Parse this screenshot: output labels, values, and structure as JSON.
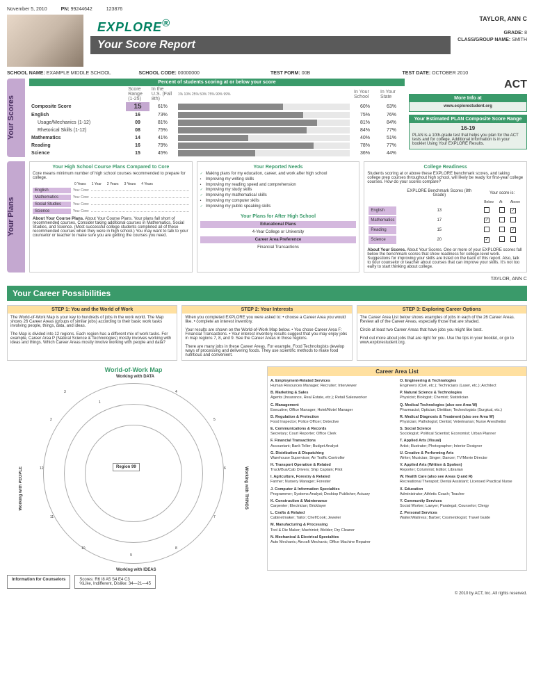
{
  "top": {
    "date": "November 5, 2010",
    "pn_label": "PN:",
    "pn": "99244642",
    "id": "123876"
  },
  "header": {
    "logo": "EXPLORE",
    "reg": "®",
    "title": "Your Score Report"
  },
  "student": {
    "name": "TAYLOR, ANN C",
    "grade_label": "GRADE:",
    "grade": "8",
    "class_label": "CLASS/GROUP NAME:",
    "class": "SMITH"
  },
  "info": {
    "school_name_label": "SCHOOL NAME:",
    "school_name": "EXAMPLE MIDDLE SCHOOL",
    "school_code_label": "SCHOOL CODE:",
    "school_code": "00000000",
    "test_form_label": "TEST FORM:",
    "test_form": "00B",
    "test_date_label": "TEST DATE:",
    "test_date": "OCTOBER 2010"
  },
  "scores": {
    "tab": "Your Scores",
    "header": "Percent of students scoring at or below your score",
    "range_label": "Score Range (1-25)",
    "us_label": "In the U.S. (Fall 8th)",
    "school_label": "In Your School",
    "state_label": "In Your State",
    "ticks": [
      "1%",
      "10%",
      "25%",
      "50%",
      "75%",
      "90%",
      "99%"
    ],
    "rows": [
      {
        "label": "Composite Score",
        "bold": true,
        "score": "15",
        "big": true,
        "us": 61,
        "school": "60%",
        "state": "63%"
      },
      {
        "label": "English",
        "bold": true,
        "score": "16",
        "us": 73,
        "school": "75%",
        "state": "76%"
      },
      {
        "label": "Usage/Mechanics (1-12)",
        "bold": false,
        "score": "09",
        "us": 81,
        "school": "81%",
        "state": "84%",
        "indent": true
      },
      {
        "label": "Rhetorical Skills (1-12)",
        "bold": false,
        "score": "08",
        "us": 75,
        "school": "84%",
        "state": "77%",
        "indent": true
      },
      {
        "label": "Mathematics",
        "bold": true,
        "score": "14",
        "us": 41,
        "school": "40%",
        "state": "51%"
      },
      {
        "label": "Reading",
        "bold": true,
        "score": "16",
        "us": 79,
        "school": "78%",
        "state": "77%"
      },
      {
        "label": "Science",
        "bold": true,
        "score": "15",
        "us": 45,
        "school": "36%",
        "state": "44%"
      }
    ],
    "act_logo": "ACT",
    "more_info": {
      "hd": "More Info at",
      "url": "www.explorestudent.org"
    },
    "plan": {
      "hd": "Your Estimated PLAN Composite Score Range",
      "range": "16-19",
      "text": "PLAN is a 10th-grade test that helps you plan for the ACT tests and for college. Additional information is in your booklet Using Your EXPLORE Results."
    }
  },
  "plans": {
    "tab": "Your Plans",
    "courses": {
      "hd": "Your High School Course Plans Compared to Core",
      "intro": "Core means minimum number of high school courses recommended to prepare for college.",
      "years_hdr": [
        "0 Years",
        "1 Year",
        "2 Years",
        "3 Years",
        "4 Years"
      ],
      "subjects": [
        "English",
        "Mathematics",
        "Social Studies",
        "Science"
      ],
      "you_core": "You: Core:",
      "about": "About Your Course Plans. Your plans fall short of recommended courses. Consider taking additional courses in Mathematics, Social Studies, and Science. (Most successful college students completed all of these recommended courses when they were in high school.) You may want to talk to your counselor or teacher to make sure you are getting the courses you need."
    },
    "needs": {
      "hd": "Your Reported Needs",
      "items": [
        {
          "t": "Making plans for my education, career, and work after high school",
          "c": true
        },
        {
          "t": "Improving my writing skills",
          "c": false
        },
        {
          "t": "Improving my reading speed and comprehension",
          "c": false
        },
        {
          "t": "Improving my study skills",
          "c": true
        },
        {
          "t": "Improving my mathematical skills",
          "c": true
        },
        {
          "t": "Improving my computer skills",
          "c": false
        },
        {
          "t": "Improving my public speaking skills",
          "c": true
        }
      ],
      "after_hd": "Your Plans for After High School",
      "edu_hd": "Educational Plans",
      "edu": "4-Year College or University",
      "pref_hd": "Career Area Preference",
      "pref": "Financial Transactions"
    },
    "readiness": {
      "hd": "College Readiness",
      "intro": "Students scoring at or above these EXPLORE benchmark scores, and taking college prep courses throughout high school, will likely be ready for first-year college courses. How do your scores compare?",
      "bench_hd": "EXPLORE Benchmark Scores (8th Grade)",
      "your_score": "Your score is:",
      "cols": [
        "Below",
        "At",
        "Above"
      ],
      "rows": [
        {
          "s": "English",
          "b": "13",
          "mark": 2
        },
        {
          "s": "Mathematics",
          "b": "17",
          "mark": 0
        },
        {
          "s": "Reading",
          "b": "15",
          "mark": 2
        },
        {
          "s": "Science",
          "b": "20",
          "mark": 0
        }
      ],
      "about": "About Your Scores. One or more of your EXPLORE scores fall below the benchmark scores that show readiness for college-level work. Suggestions for improving your skills are listed on the back of this report. Also, talk to your counselor or teacher about courses that can improve your skills. It's not too early to start thinking about college."
    }
  },
  "career": {
    "header": "Your Career Possibilities",
    "steps": [
      {
        "hd": "STEP 1: You and the World of Work",
        "p1": "The World-of-Work Map is your key to hundreds of jobs in the work world. The Map shows 26 Career Areas (groups of similar jobs) according to their basic work tasks involving people, things, data, and ideas.",
        "p2": "The Map is divided into 12 regions. Each region has a different mix of work tasks. For example, Career Area P (Natural Science & Technologies) mostly involves working with ideas and things. Which Career Areas mostly involve working with people and data?"
      },
      {
        "hd": "STEP 2: Your Interests",
        "p1": "When you completed EXPLORE you were asked to:\n• choose a Career Area you would like.\n• complete an interest inventory.",
        "p2": "Your results are shown on the World-of-Work Map below.\n• You chose Career Area F: Financial Transactions.\n• Your interest inventory results suggest that you may enjoy jobs in map regions 7, 8, and 9. See the Career Areas in those regions.",
        "p3": "There are many jobs in these Career Areas. For example, Food Technologists develop ways of processing and delivering foods. They use scientific methods to make food nutritious and convenient."
      },
      {
        "hd": "STEP 3: Exploring Career Options",
        "p1": "The Career Area List below shows examples of jobs in each of the 26 Career Areas. Review all of the Career Areas, especially those that are shaded.",
        "p2": "Circle at least two Career Areas that have jobs you might like best.",
        "p3": "Find out more about jobs that are right for you. Use the tips in your booklet, or go to www.explorestudent.org."
      }
    ],
    "map_title": "World-of-Work Map",
    "region_label": "Region 99",
    "axes": {
      "top": "Working with DATA",
      "bottom": "Working with IDEAS",
      "left": "Working with PEOPLE",
      "right": "Working with THINGS"
    },
    "list_hd": "Career Area List",
    "areas_left": [
      {
        "b": "A. Employment-Related Services",
        "d": "Human Resources Manager; Recruiter; Interviewer"
      },
      {
        "b": "B. Marketing & Sales",
        "d": "Agents (Insurance, Real Estate, etc.); Retail Salesworker"
      },
      {
        "b": "C. Management",
        "d": "Executive; Office Manager; Hotel/Motel Manager"
      },
      {
        "b": "D. Regulation & Protection",
        "d": "Food Inspector; Police Officer; Detective"
      },
      {
        "b": "E. Communications & Records",
        "d": "Secretary; Court Reporter; Office Clerk"
      },
      {
        "b": "F. Financial Transactions",
        "d": "Accountant; Bank Teller; Budget Analyst"
      },
      {
        "b": "G. Distribution & Dispatching",
        "d": "Warehouse Supervisor; Air Traffic Controller"
      },
      {
        "b": "H. Transport Operation & Related",
        "d": "Truck/Bus/Cab Drivers; Ship Captain; Pilot"
      },
      {
        "b": "I. Agriculture, Forestry & Related",
        "d": "Farmer; Nursery Manager; Forester"
      },
      {
        "b": "J. Computer & Information Specialties",
        "d": "Programmer; Systems Analyst; Desktop Publisher; Actuary"
      },
      {
        "b": "K. Construction & Maintenance",
        "d": "Carpenter; Electrician; Bricklayer"
      },
      {
        "b": "L. Crafts & Related",
        "d": "Cabinetmaker; Tailor; Chef/Cook; Jeweler"
      },
      {
        "b": "M. Manufacturing & Processing",
        "d": "Tool & Die Maker; Machinist; Welder; Dry Cleaner"
      },
      {
        "b": "N. Mechanical & Electrical Specialties",
        "d": "Auto Mechanic; Aircraft Mechanic; Office Machine Repairer"
      }
    ],
    "areas_right": [
      {
        "b": "O. Engineering & Technologies",
        "d": "Engineers (Civil, etc.); Technicians (Laser, etc.); Architect"
      },
      {
        "b": "P. Natural Science & Technologies",
        "d": "Physicist; Biologist; Chemist; Statistician"
      },
      {
        "b": "Q. Medical Technologies (also see Area W)",
        "d": "Pharmacist; Optician; Dietitian; Technologists (Surgical, etc.)"
      },
      {
        "b": "R. Medical Diagnosis & Treatment (also see Area W)",
        "d": "Physician; Pathologist; Dentist; Veterinarian; Nurse Anesthetist"
      },
      {
        "b": "S. Social Science",
        "d": "Sociologist; Political Scientist; Economist; Urban Planner"
      },
      {
        "b": "T. Applied Arts (Visual)",
        "d": "Artist; Illustrator; Photographer; Interior Designer"
      },
      {
        "b": "U. Creative & Performing Arts",
        "d": "Writer; Musician; Singer; Dancer; TV/Movie Director"
      },
      {
        "b": "V. Applied Arts (Written & Spoken)",
        "d": "Reporter; Columnist; Editor; Librarian"
      },
      {
        "b": "W. Health Care (also see Areas Q and R)",
        "d": "Recreational Therapist; Dental Assistant; Licensed Practical Nurse"
      },
      {
        "b": "X. Education",
        "d": "Administrator; Athletic Coach; Teacher"
      },
      {
        "b": "Y. Community Services",
        "d": "Social Worker; Lawyer; Paralegal; Counselor; Clergy"
      },
      {
        "b": "Z. Personal Services",
        "d": "Waiter/Waitress; Barber; Cosmetologist; Travel Guide"
      }
    ]
  },
  "footer": {
    "counselors_hd": "Information for Counselors",
    "scores_line": "Scores: R6 I8 A5 S4 E4 C3",
    "like_line": "%Like, Indifferent, Dislike: 34—21—45",
    "copyright": "© 2010 by ACT, Inc. All rights reserved."
  }
}
